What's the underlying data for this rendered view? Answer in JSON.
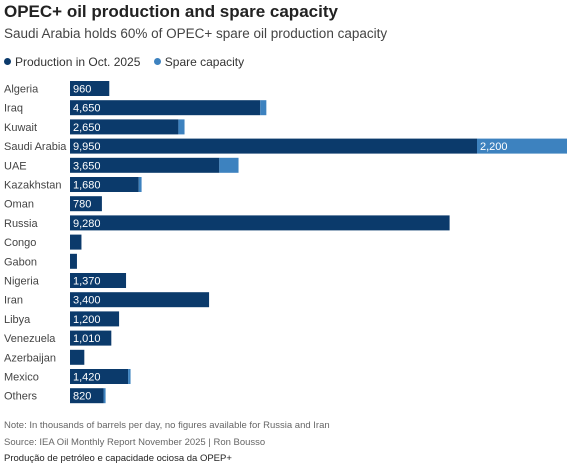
{
  "header": {
    "title": "OPEC+ oil production and spare capacity",
    "subtitle": "Saudi Arabia holds 60% of OPEC+ spare oil production capacity"
  },
  "legend": {
    "production_label": "Production in Oct. 2025",
    "spare_label": "Spare capacity"
  },
  "colors": {
    "production": "#0b3a6b",
    "spare": "#3d82bf",
    "label_text": "#444444",
    "bar_text": "#ffffff"
  },
  "chart_data": {
    "type": "bar",
    "orientation": "horizontal",
    "stacked": true,
    "categories": [
      "Algeria",
      "Iraq",
      "Kuwait",
      "Saudi Arabia",
      "UAE",
      "Kazakhstan",
      "Oman",
      "Russia",
      "Congo",
      "Gabon",
      "Nigeria",
      "Iran",
      "Libya",
      "Venezuela",
      "Azerbaijan",
      "Mexico",
      "Others"
    ],
    "series": [
      {
        "name": "Production in Oct. 2025",
        "values": [
          960,
          4650,
          2650,
          9950,
          3650,
          1680,
          780,
          9280,
          280,
          170,
          1370,
          3400,
          1200,
          1010,
          350,
          1420,
          820
        ],
        "labels": [
          "960",
          "4,650",
          "2,650",
          "9,950",
          "3,650",
          "1,680",
          "780",
          "9,280",
          "",
          "",
          "1,370",
          "3,400",
          "1,200",
          "1,010",
          "",
          "1,420",
          "820"
        ]
      },
      {
        "name": "Spare capacity",
        "values": [
          0,
          150,
          150,
          2200,
          470,
          70,
          0,
          0,
          0,
          0,
          0,
          0,
          0,
          0,
          0,
          60,
          50
        ],
        "labels": [
          "",
          "",
          "",
          "2,200",
          "",
          "",
          "",
          "",
          "",
          "",
          "",
          "",
          "",
          "",
          "",
          "",
          ""
        ]
      }
    ],
    "xlim": [
      0,
      12150
    ],
    "grid": false,
    "legend_position": "top-left",
    "unit": "thousands of barrels per day"
  },
  "footer": {
    "note": "Note: In thousands of barrels per day, no figures available for Russia and Iran",
    "source": "Source: IEA Oil Monthly Report November 2025 | Ron Bousso",
    "caption": "Produção de petróleo e capacidade ociosa da OPEP+"
  }
}
